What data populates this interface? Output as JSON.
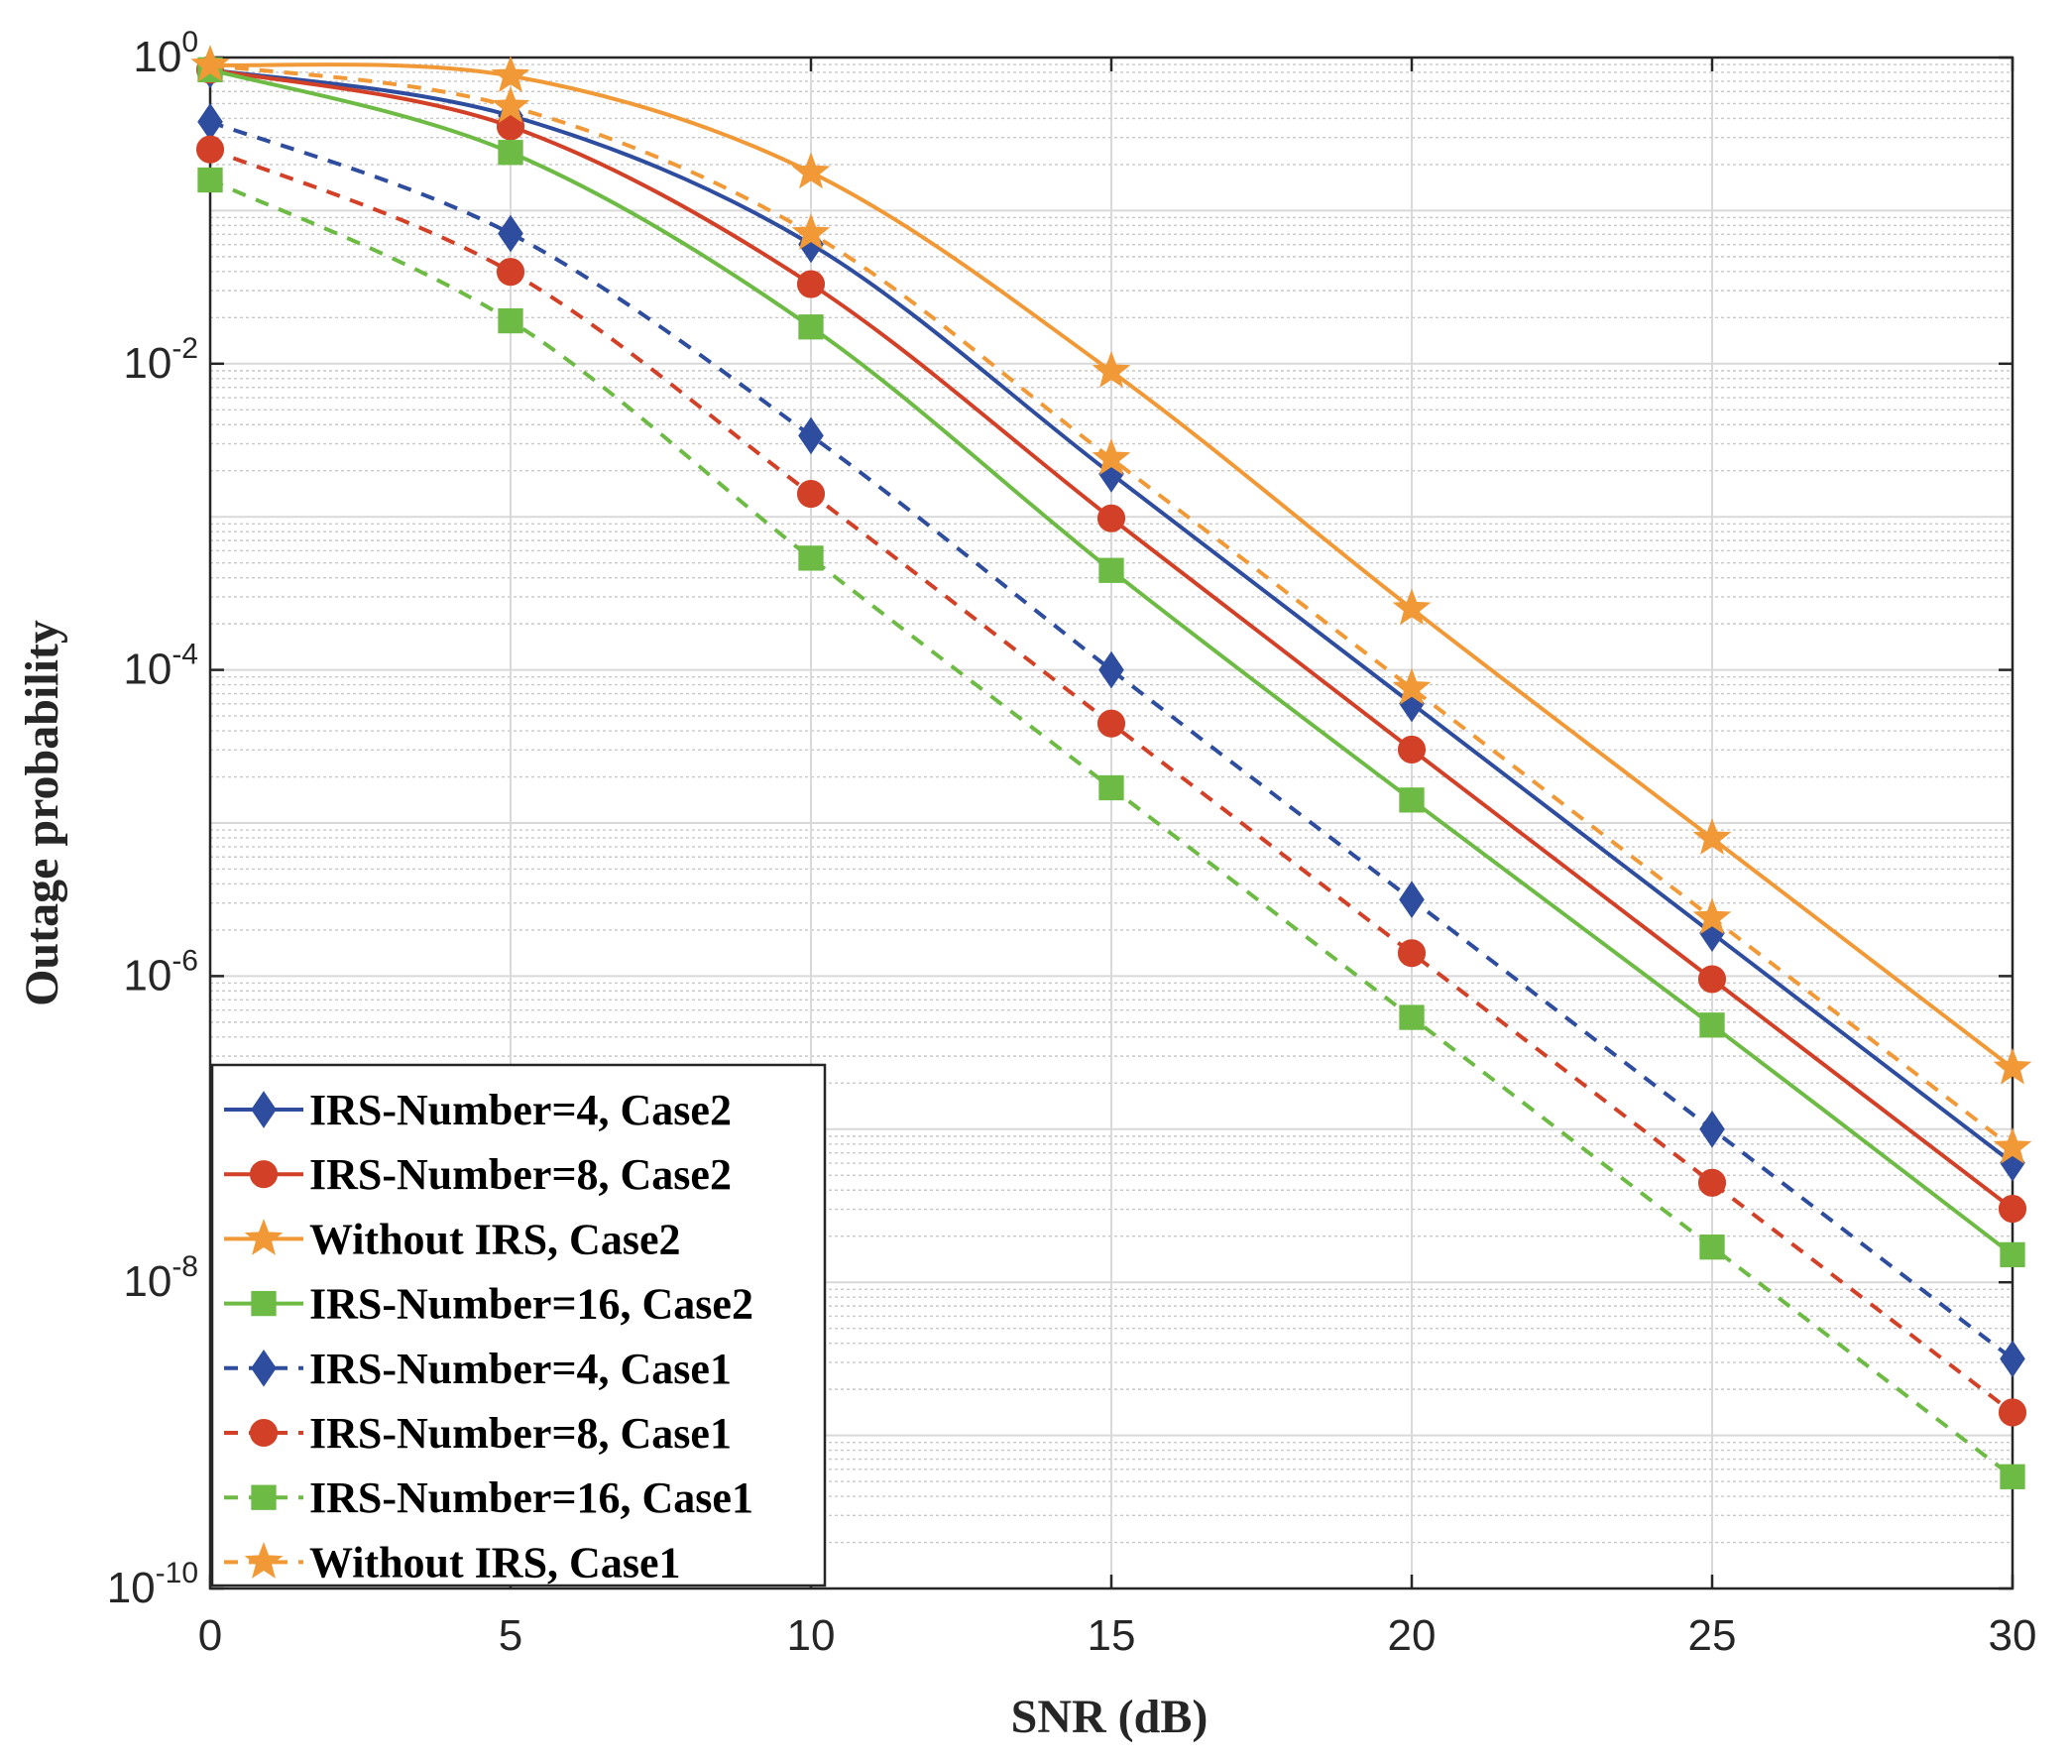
{
  "chart_data": {
    "type": "line",
    "title": "",
    "xlabel": "SNR (dB)",
    "ylabel": "Outage probability",
    "yscale": "log",
    "xlim": [
      0,
      30
    ],
    "ylim_exp": [
      -10,
      0
    ],
    "x_ticks": [
      "0",
      "5",
      "10",
      "15",
      "20",
      "25",
      "30"
    ],
    "y_ticks": [
      {
        "base": "10",
        "exp": "0",
        "value": 0
      },
      {
        "base": "10",
        "exp": "-2",
        "value": -2
      },
      {
        "base": "10",
        "exp": "-4",
        "value": -4
      },
      {
        "base": "10",
        "exp": "-6",
        "value": -6
      },
      {
        "base": "10",
        "exp": "-8",
        "value": -8
      },
      {
        "base": "10",
        "exp": "-10",
        "value": -10
      }
    ],
    "grid": true,
    "legend_position": "bottom-left",
    "x": [
      0,
      5,
      10,
      15,
      20,
      25,
      30
    ],
    "series": [
      {
        "name": "IRS-Number=4, Case2",
        "color": "#2E4D9E",
        "marker": "diamond",
        "dash": false,
        "log10_values": [
          -0.08,
          -0.38,
          -1.22,
          -2.72,
          -4.22,
          -5.72,
          -7.22
        ]
      },
      {
        "name": "IRS-Number=8, Case2",
        "color": "#D24127",
        "marker": "circle",
        "dash": false,
        "log10_values": [
          -0.08,
          -0.45,
          -1.48,
          -3.01,
          -4.52,
          -6.02,
          -7.52
        ]
      },
      {
        "name": "Without IRS, Case2",
        "color": "#F19937",
        "marker": "star",
        "dash": false,
        "log10_values": [
          -0.05,
          -0.12,
          -0.75,
          -2.05,
          -3.6,
          -5.1,
          -6.6
        ]
      },
      {
        "name": "IRS-Number=16, Case2",
        "color": "#6DBB44",
        "marker": "square",
        "dash": false,
        "log10_values": [
          -0.08,
          -0.62,
          -1.76,
          -3.35,
          -4.85,
          -6.32,
          -7.82
        ]
      },
      {
        "name": "IRS-Number=4, Case1",
        "color": "#2E4D9E",
        "marker": "diamond",
        "dash": true,
        "log10_values": [
          -0.42,
          -1.15,
          -2.47,
          -4.0,
          -5.5,
          -7.0,
          -8.5
        ]
      },
      {
        "name": "IRS-Number=8, Case1",
        "color": "#D24127",
        "marker": "circle",
        "dash": true,
        "log10_values": [
          -0.6,
          -1.4,
          -2.85,
          -4.35,
          -5.85,
          -7.35,
          -8.85
        ]
      },
      {
        "name": "IRS-Number=16, Case1",
        "color": "#6DBB44",
        "marker": "square",
        "dash": true,
        "log10_values": [
          -0.8,
          -1.72,
          -3.27,
          -4.77,
          -6.27,
          -7.77,
          -9.27
        ]
      },
      {
        "name": "Without IRS, Case1",
        "color": "#F19937",
        "marker": "star",
        "dash": true,
        "log10_values": [
          -0.05,
          -0.32,
          -1.15,
          -2.62,
          -4.12,
          -5.62,
          -7.12
        ]
      }
    ]
  }
}
